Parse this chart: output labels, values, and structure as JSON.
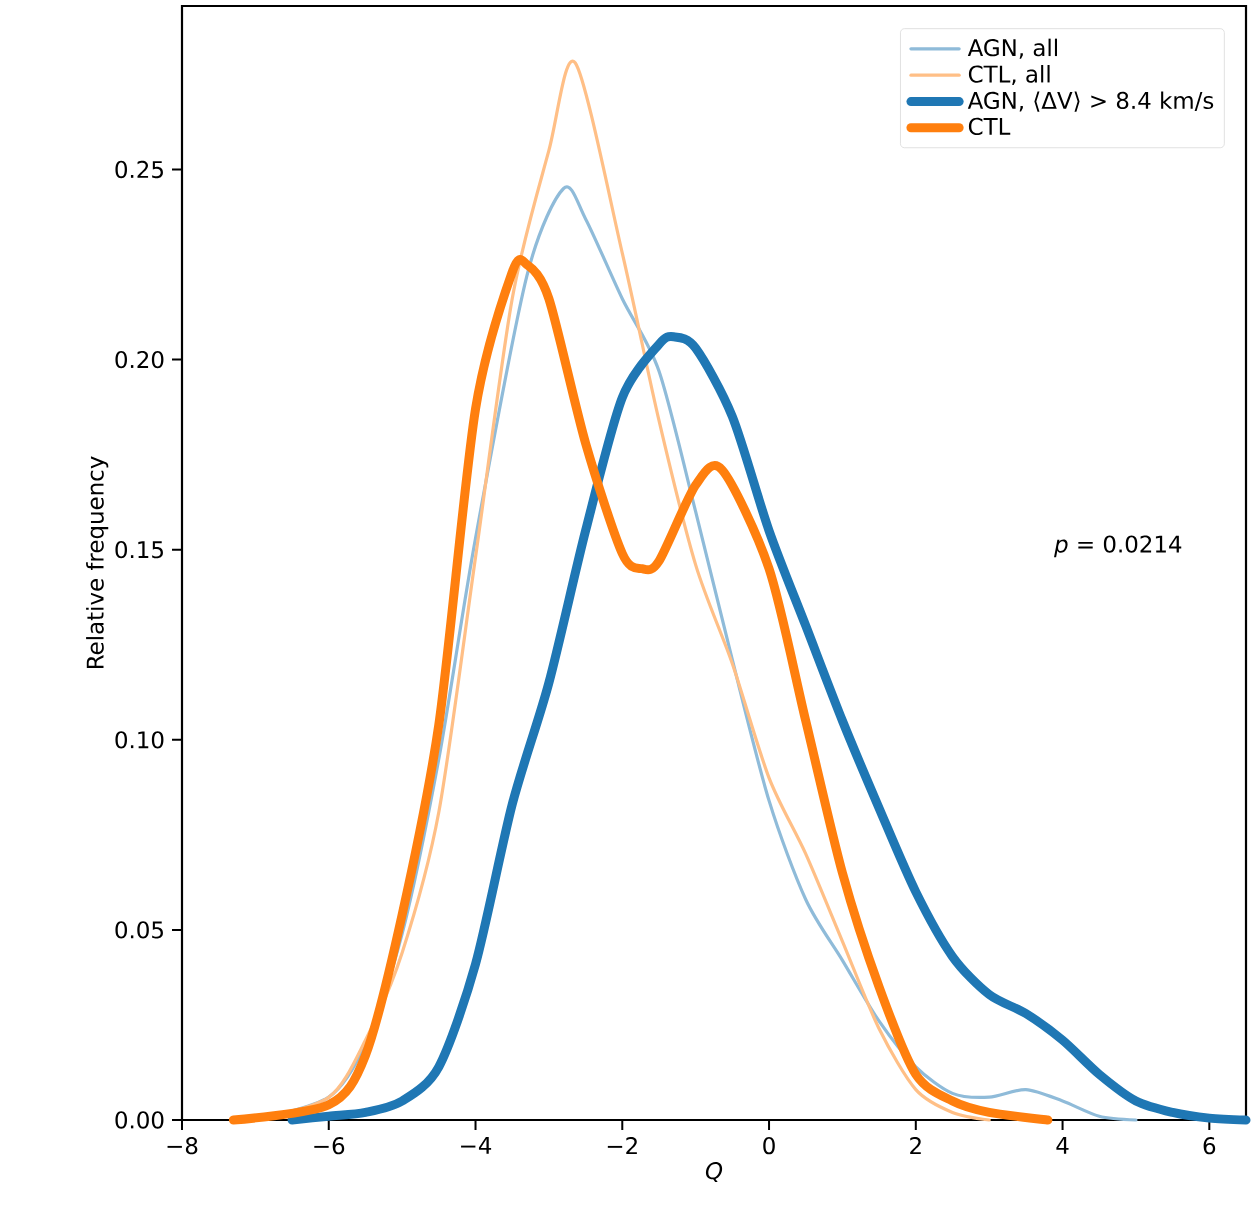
{
  "chart_data": {
    "type": "line",
    "xlabel": "Q",
    "ylabel": "Relative frequency",
    "xlim": [
      -8,
      6.5
    ],
    "ylim": [
      0,
      0.293
    ],
    "xticks": [
      {
        "value": -8,
        "label": "−8"
      },
      {
        "value": -6,
        "label": "−6"
      },
      {
        "value": -4,
        "label": "−4"
      },
      {
        "value": -2,
        "label": "−2"
      },
      0,
      2,
      4,
      6
    ],
    "yticks": [
      {
        "value": 0,
        "label": "0.00"
      },
      {
        "value": 0.05,
        "label": "0.05"
      },
      {
        "value": 0.1,
        "label": "0.10"
      },
      {
        "value": 0.15,
        "label": "0.15"
      },
      {
        "value": 0.2,
        "label": "0.20"
      },
      {
        "value": 0.25,
        "label": "0.25"
      }
    ],
    "legend": "top right",
    "grid": false,
    "marker": "none",
    "line_style": "solid",
    "annotations": [
      "*p* = 0.0214"
    ],
    "series": [
      {
        "name": "AGN, all",
        "color": "#8fbbd9",
        "x": [
          -7,
          -6,
          -5.5,
          -5,
          -4.5,
          -4,
          -3.3,
          -2.8,
          -2.5,
          -2,
          -1.5,
          -1,
          -0.5,
          0,
          0.5,
          1,
          1.5,
          2,
          2.5,
          3,
          3.5,
          4,
          4.5,
          5
        ],
        "values": [
          0,
          0.006,
          0.02,
          0.049,
          0.095,
          0.153,
          0.222,
          0.245,
          0.237,
          0.216,
          0.197,
          0.16,
          0.121,
          0.084,
          0.058,
          0.042,
          0.026,
          0.014,
          0.007,
          0.006,
          0.008,
          0.005,
          0.001,
          0
        ]
      },
      {
        "name": "CTL, all",
        "color": "#ffbf86",
        "x": [
          -7,
          -6,
          -5.5,
          -5,
          -4.5,
          -4,
          -3.5,
          -3,
          -2.64,
          -2,
          -1.5,
          -1,
          -0.5,
          0,
          0.5,
          1,
          1.5,
          2,
          2.5,
          3
        ],
        "values": [
          0,
          0.006,
          0.021,
          0.044,
          0.081,
          0.148,
          0.216,
          0.255,
          0.278,
          0.228,
          0.184,
          0.146,
          0.12,
          0.09,
          0.07,
          0.047,
          0.024,
          0.008,
          0.002,
          0
        ]
      },
      {
        "name": "AGN, ⟨ΔV⟩ > 8.4 km/s",
        "color": "#1f77b4",
        "x": [
          -6.5,
          -6,
          -5.5,
          -5,
          -4.5,
          -4,
          -3.5,
          -3,
          -2.5,
          -2,
          -1.5,
          -1.3,
          -1,
          -0.5,
          0,
          0.5,
          1,
          1.5,
          2,
          2.5,
          3,
          3.5,
          4,
          4.5,
          5,
          5.5,
          6,
          6.5
        ],
        "values": [
          0,
          0.001,
          0.002,
          0.005,
          0.014,
          0.041,
          0.083,
          0.115,
          0.155,
          0.19,
          0.204,
          0.206,
          0.203,
          0.185,
          0.155,
          0.13,
          0.105,
          0.082,
          0.06,
          0.043,
          0.033,
          0.028,
          0.021,
          0.012,
          0.005,
          0.002,
          0.0005,
          0
        ]
      },
      {
        "name": "CTL",
        "color": "#ff7f0e",
        "x": [
          -7.3,
          -6,
          -5.5,
          -5,
          -4.5,
          -4,
          -3.5,
          -3.3,
          -3,
          -2.5,
          -2,
          -1.73,
          -1.5,
          -1,
          -0.64,
          0,
          0.5,
          1,
          1.5,
          2,
          2.5,
          3,
          3.8
        ],
        "values": [
          0,
          0.004,
          0.017,
          0.054,
          0.104,
          0.187,
          0.223,
          0.225,
          0.216,
          0.178,
          0.149,
          0.145,
          0.147,
          0.167,
          0.171,
          0.145,
          0.105,
          0.065,
          0.035,
          0.012,
          0.005,
          0.002,
          0
        ]
      }
    ]
  }
}
